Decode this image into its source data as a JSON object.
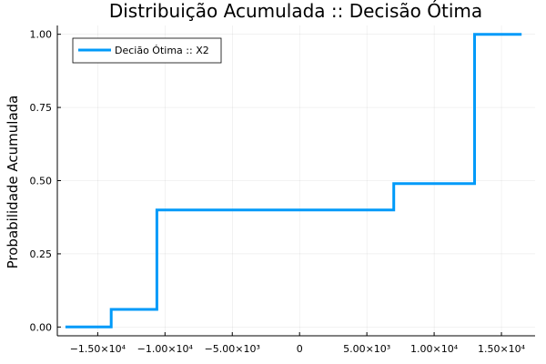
{
  "chart_data": {
    "type": "line",
    "step": true,
    "title": "Distribuição Acumulada :: Decisão Ótima",
    "xlabel": "",
    "ylabel": "Probabilidade Acumulada",
    "xlim": [
      -18000,
      17500
    ],
    "ylim": [
      -0.03,
      1.03
    ],
    "xticks": [
      {
        "value": -15000,
        "label": "−1.50×10⁴"
      },
      {
        "value": -10000,
        "label": "−1.00×10⁴"
      },
      {
        "value": -5000,
        "label": "−5.00×10³"
      },
      {
        "value": 0,
        "label": "0"
      },
      {
        "value": 5000,
        "label": "5.00×10³"
      },
      {
        "value": 10000,
        "label": "1.00×10⁴"
      },
      {
        "value": 15000,
        "label": "1.50×10⁴"
      }
    ],
    "yticks": [
      {
        "value": 0.0,
        "label": "0.00"
      },
      {
        "value": 0.25,
        "label": "0.25"
      },
      {
        "value": 0.5,
        "label": "0.50"
      },
      {
        "value": 0.75,
        "label": "0.75"
      },
      {
        "value": 1.0,
        "label": "1.00"
      }
    ],
    "grid": true,
    "legend_position": "top-left",
    "series": [
      {
        "name": "Decião Ótima :: X2",
        "color": "#009af9",
        "points": [
          {
            "x": -17400,
            "y": 0.0
          },
          {
            "x": -14000,
            "y": 0.0
          },
          {
            "x": -14000,
            "y": 0.06
          },
          {
            "x": -10600,
            "y": 0.06
          },
          {
            "x": -10600,
            "y": 0.4
          },
          {
            "x": 7000,
            "y": 0.4
          },
          {
            "x": 7000,
            "y": 0.49
          },
          {
            "x": 13000,
            "y": 0.49
          },
          {
            "x": 13000,
            "y": 1.0
          },
          {
            "x": 16500,
            "y": 1.0
          }
        ]
      }
    ]
  }
}
